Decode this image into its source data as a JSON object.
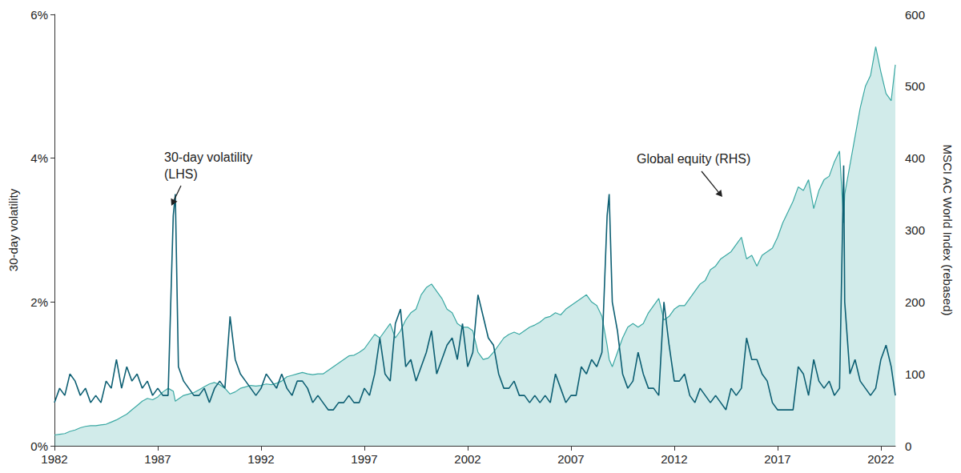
{
  "chart_data": {
    "type": "line",
    "x": [
      1982,
      1982.25,
      1982.5,
      1982.75,
      1983,
      1983.25,
      1983.5,
      1983.75,
      1984,
      1984.25,
      1984.5,
      1984.75,
      1985,
      1985.25,
      1985.5,
      1985.75,
      1986,
      1986.25,
      1986.5,
      1986.75,
      1987,
      1987.25,
      1987.5,
      1987.75,
      1987.85,
      1988,
      1988.25,
      1988.5,
      1988.75,
      1989,
      1989.25,
      1989.5,
      1989.75,
      1990,
      1990.25,
      1990.5,
      1990.75,
      1991,
      1991.25,
      1991.5,
      1991.75,
      1992,
      1992.25,
      1992.5,
      1992.75,
      1993,
      1993.25,
      1993.5,
      1993.75,
      1994,
      1994.25,
      1994.5,
      1994.75,
      1995,
      1995.25,
      1995.5,
      1995.75,
      1996,
      1996.25,
      1996.5,
      1996.75,
      1997,
      1997.25,
      1997.5,
      1997.75,
      1998,
      1998.25,
      1998.5,
      1998.75,
      1999,
      1999.25,
      1999.5,
      1999.75,
      2000,
      2000.25,
      2000.5,
      2000.75,
      2001,
      2001.25,
      2001.5,
      2001.75,
      2002,
      2002.25,
      2002.5,
      2002.75,
      2003,
      2003.25,
      2003.5,
      2003.75,
      2004,
      2004.25,
      2004.5,
      2004.75,
      2005,
      2005.25,
      2005.5,
      2005.75,
      2006,
      2006.25,
      2006.5,
      2006.75,
      2007,
      2007.25,
      2007.5,
      2007.75,
      2008,
      2008.25,
      2008.5,
      2008.75,
      2008.85,
      2009,
      2009.25,
      2009.5,
      2009.75,
      2010,
      2010.25,
      2010.5,
      2010.75,
      2011,
      2011.25,
      2011.5,
      2011.75,
      2012,
      2012.25,
      2012.5,
      2012.75,
      2013,
      2013.25,
      2013.5,
      2013.75,
      2014,
      2014.25,
      2014.5,
      2014.75,
      2015,
      2015.25,
      2015.5,
      2015.75,
      2016,
      2016.25,
      2016.5,
      2016.75,
      2017,
      2017.25,
      2017.5,
      2017.75,
      2018,
      2018.25,
      2018.5,
      2018.75,
      2019,
      2019.25,
      2019.5,
      2019.75,
      2020,
      2020.2,
      2020.25,
      2020.5,
      2020.75,
      2021,
      2021.25,
      2021.5,
      2021.75,
      2022,
      2022.25,
      2022.5,
      2022.7
    ],
    "series": [
      {
        "name": "Global equity (RHS)",
        "type": "area",
        "axis": "y2",
        "color": "#3aa8a3",
        "values": [
          15,
          16,
          17,
          20,
          22,
          25,
          27,
          28,
          28,
          29,
          30,
          33,
          36,
          40,
          44,
          50,
          56,
          62,
          66,
          64,
          68,
          75,
          80,
          76,
          62,
          65,
          70,
          72,
          74,
          78,
          82,
          86,
          88,
          85,
          80,
          72,
          75,
          80,
          82,
          84,
          83,
          84,
          86,
          85,
          87,
          90,
          96,
          98,
          100,
          102,
          100,
          99,
          100,
          100,
          105,
          110,
          115,
          120,
          125,
          126,
          130,
          135,
          145,
          155,
          150,
          160,
          170,
          150,
          160,
          175,
          185,
          190,
          210,
          220,
          225,
          215,
          205,
          190,
          185,
          170,
          165,
          165,
          160,
          130,
          120,
          122,
          130,
          140,
          150,
          155,
          158,
          155,
          160,
          165,
          168,
          172,
          178,
          180,
          185,
          182,
          190,
          195,
          200,
          205,
          210,
          200,
          195,
          180,
          140,
          120,
          110,
          130,
          150,
          165,
          170,
          165,
          170,
          185,
          195,
          205,
          175,
          180,
          190,
          195,
          195,
          205,
          215,
          225,
          230,
          245,
          250,
          260,
          265,
          270,
          280,
          290,
          260,
          265,
          250,
          265,
          270,
          275,
          290,
          310,
          325,
          340,
          360,
          355,
          370,
          330,
          355,
          370,
          375,
          395,
          410,
          310,
          350,
          390,
          430,
          470,
          500,
          515,
          555,
          520,
          490,
          480,
          530
        ]
      },
      {
        "name": "30-day volatility\n(LHS)",
        "type": "line",
        "axis": "y",
        "color": "#0d5f73",
        "values": [
          0.6,
          0.8,
          0.7,
          1.0,
          0.9,
          0.7,
          0.8,
          0.6,
          0.7,
          0.6,
          0.9,
          0.8,
          1.2,
          0.8,
          1.1,
          0.9,
          1.0,
          0.8,
          0.9,
          0.7,
          0.8,
          0.7,
          0.7,
          3.2,
          3.5,
          1.1,
          0.9,
          0.8,
          0.7,
          0.7,
          0.8,
          0.6,
          0.8,
          0.9,
          0.8,
          1.8,
          1.2,
          1.0,
          0.9,
          0.8,
          0.7,
          0.8,
          1.0,
          0.9,
          0.8,
          1.0,
          0.8,
          0.7,
          0.9,
          0.9,
          0.8,
          0.6,
          0.7,
          0.6,
          0.5,
          0.5,
          0.6,
          0.6,
          0.7,
          0.6,
          0.6,
          0.8,
          0.7,
          1.0,
          1.5,
          1.0,
          0.9,
          1.7,
          1.9,
          1.1,
          1.2,
          0.9,
          1.1,
          1.3,
          1.6,
          1.0,
          1.2,
          1.4,
          1.5,
          1.2,
          1.7,
          1.1,
          1.3,
          2.1,
          1.8,
          1.5,
          1.4,
          1.0,
          0.8,
          0.8,
          0.9,
          0.7,
          0.7,
          0.6,
          0.7,
          0.6,
          0.7,
          0.6,
          1.0,
          0.8,
          0.6,
          0.7,
          0.7,
          1.1,
          1.0,
          1.2,
          1.1,
          1.3,
          3.2,
          3.5,
          2.0,
          1.6,
          1.0,
          0.8,
          0.9,
          1.3,
          1.0,
          0.8,
          0.8,
          0.7,
          2.0,
          1.4,
          0.9,
          0.9,
          1.0,
          0.7,
          0.6,
          0.8,
          0.7,
          0.6,
          0.7,
          0.6,
          0.5,
          0.8,
          0.7,
          0.8,
          1.5,
          1.2,
          1.2,
          1.0,
          0.9,
          0.6,
          0.5,
          0.5,
          0.5,
          0.5,
          1.1,
          1.0,
          0.7,
          1.2,
          0.9,
          0.8,
          0.9,
          0.7,
          0.8,
          3.9,
          2.0,
          1.0,
          1.2,
          0.9,
          0.8,
          0.7,
          0.8,
          1.2,
          1.4,
          1.1,
          0.7
        ]
      }
    ],
    "y_label": "30-day volatility",
    "y2_label": "MSCI AC World Index (rebased)",
    "xlim": [
      1982,
      2022.7
    ],
    "xticks": [
      1982,
      1987,
      1992,
      1997,
      2002,
      2007,
      2012,
      2017,
      2022
    ],
    "ylim": [
      0,
      6
    ],
    "yticks": [
      {
        "value": 0,
        "label": "0%"
      },
      {
        "value": 2,
        "label": "2%"
      },
      {
        "value": 4,
        "label": "4%"
      },
      {
        "value": 6,
        "label": "6%"
      }
    ],
    "y2lim": [
      0,
      600
    ],
    "y2ticks": [
      0,
      100,
      200,
      300,
      400,
      500,
      600
    ],
    "grid": false
  }
}
